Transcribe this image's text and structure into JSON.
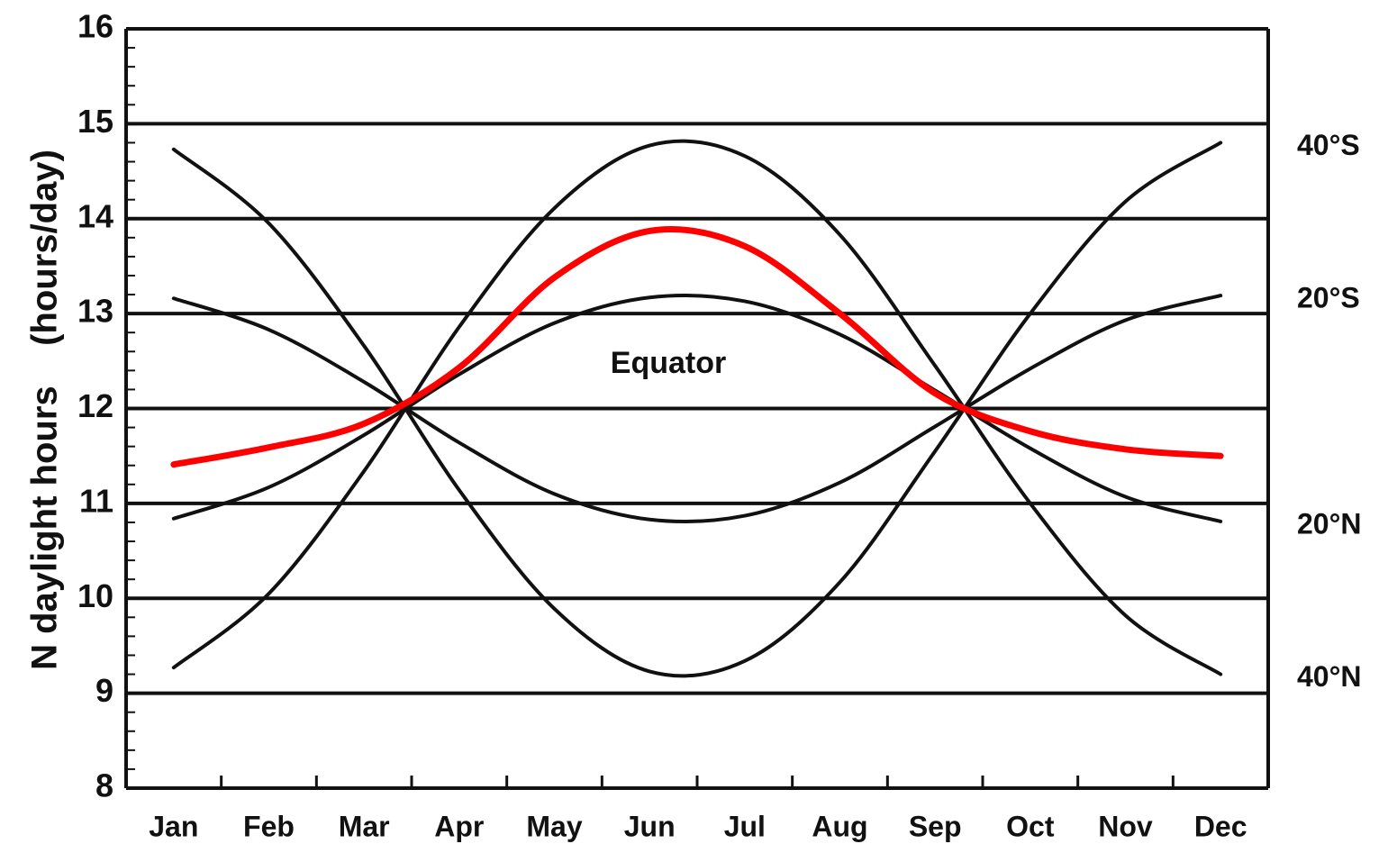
{
  "chart_data": {
    "type": "line",
    "y_label": "N daylight hours    (hours/day)",
    "annotation": "Equator",
    "categories": [
      "Jan",
      "Feb",
      "Mar",
      "Apr",
      "May",
      "Jun",
      "Jul",
      "Aug",
      "Sep",
      "Oct",
      "Nov",
      "Dec"
    ],
    "series": [
      {
        "name": "40°S",
        "color": "#111111",
        "values": [
          14.73,
          13.95,
          12.66,
          11.14,
          9.89,
          9.23,
          9.34,
          10.17,
          11.55,
          13.0,
          14.18,
          14.8
        ]
      },
      {
        "name": "20°S",
        "color": "#111111",
        "values": [
          13.16,
          12.83,
          12.28,
          11.64,
          11.1,
          10.83,
          10.87,
          11.22,
          11.81,
          12.42,
          12.93,
          13.19
        ]
      },
      {
        "name": "20°N",
        "color": "#111111",
        "values": [
          10.84,
          11.17,
          11.72,
          12.36,
          12.9,
          13.17,
          13.13,
          12.78,
          12.19,
          11.58,
          11.07,
          10.81
        ]
      },
      {
        "name": "40°N",
        "color": "#111111",
        "values": [
          9.27,
          10.05,
          11.34,
          12.86,
          14.11,
          14.77,
          14.66,
          13.83,
          12.45,
          11.0,
          9.82,
          9.2
        ]
      },
      {
        "color": "#ff0000",
        "values": [
          11.41,
          11.59,
          11.84,
          12.43,
          13.38,
          13.87,
          13.71,
          13.0,
          12.16,
          11.76,
          11.57,
          11.5
        ]
      }
    ],
    "ylim": [
      8,
      16
    ],
    "yticks": [
      8,
      9,
      10,
      11,
      12,
      13,
      14,
      15,
      16
    ],
    "grid": true
  }
}
